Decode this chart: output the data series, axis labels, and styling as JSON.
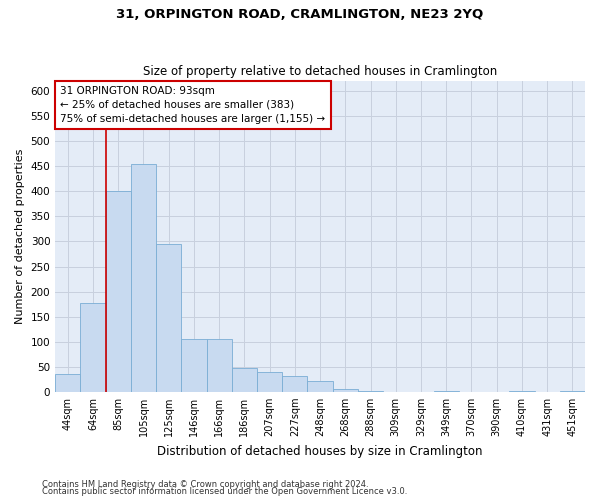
{
  "title": "31, ORPINGTON ROAD, CRAMLINGTON, NE23 2YQ",
  "subtitle": "Size of property relative to detached houses in Cramlington",
  "xlabel": "Distribution of detached houses by size in Cramlington",
  "ylabel": "Number of detached properties",
  "footnote1": "Contains HM Land Registry data © Crown copyright and database right 2024.",
  "footnote2": "Contains public sector information licensed under the Open Government Licence v3.0.",
  "categories": [
    "44sqm",
    "64sqm",
    "85sqm",
    "105sqm",
    "125sqm",
    "146sqm",
    "166sqm",
    "186sqm",
    "207sqm",
    "227sqm",
    "248sqm",
    "268sqm",
    "288sqm",
    "309sqm",
    "329sqm",
    "349sqm",
    "370sqm",
    "390sqm",
    "410sqm",
    "431sqm",
    "451sqm"
  ],
  "values": [
    35,
    178,
    400,
    455,
    295,
    105,
    105,
    48,
    40,
    32,
    22,
    5,
    1,
    0,
    0,
    1,
    0,
    0,
    1,
    0,
    1
  ],
  "bar_color": "#c8daf0",
  "bar_edge_color": "#7aadd4",
  "grid_color": "#c8d0de",
  "background_color": "#e4ecf7",
  "annotation_text": "31 ORPINGTON ROAD: 93sqm\n← 25% of detached houses are smaller (383)\n75% of semi-detached houses are larger (1,155) →",
  "annotation_box_color": "#ffffff",
  "annotation_box_edge": "#cc0000",
  "red_line_x": 1.5,
  "ylim": [
    0,
    620
  ],
  "yticks": [
    0,
    50,
    100,
    150,
    200,
    250,
    300,
    350,
    400,
    450,
    500,
    550,
    600
  ]
}
